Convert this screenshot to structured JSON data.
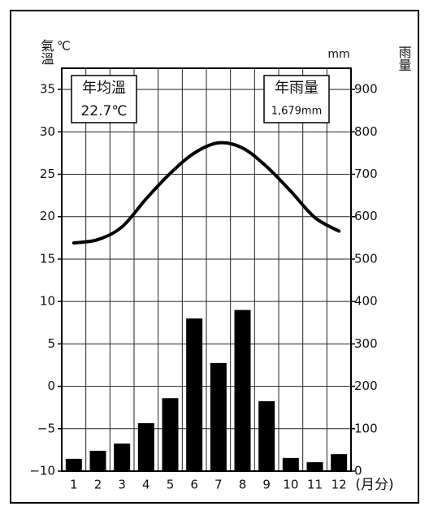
{
  "chart_data": {
    "type": "climate",
    "y_label": "氣溫",
    "y_unit": "℃",
    "y2_label": "雨量",
    "y2_unit": "mm",
    "x_label": "(月分)",
    "categories": [
      "1",
      "2",
      "3",
      "4",
      "5",
      "6",
      "7",
      "8",
      "9",
      "10",
      "11",
      "12"
    ],
    "series": [
      {
        "type": "bar",
        "axis": "y2",
        "color": "#000000",
        "values": [
          29,
          48,
          65,
          113,
          172,
          360,
          255,
          380,
          165,
          31,
          21,
          40
        ]
      },
      {
        "type": "line",
        "color": "#000000",
        "values": [
          16.9,
          17.3,
          18.8,
          22.1,
          25.1,
          27.5,
          28.7,
          28.1,
          25.9,
          23.0,
          19.9,
          18.3
        ]
      }
    ],
    "ylim": [
      -10,
      37.5
    ],
    "yticks": [
      {
        "value": -10,
        "label": "−10"
      },
      {
        "value": -5,
        "label": "−5"
      },
      0,
      5,
      10,
      15,
      20,
      25,
      30,
      35
    ],
    "y2lim": [
      0,
      950
    ],
    "y2ticks": [
      0,
      100,
      200,
      300,
      400,
      500,
      600,
      700,
      800,
      900
    ],
    "grid": true,
    "annotations": [
      {
        "title": "年均溫",
        "text": "22.7℃"
      },
      {
        "title": "年雨量",
        "text": "1,679mm"
      }
    ]
  }
}
